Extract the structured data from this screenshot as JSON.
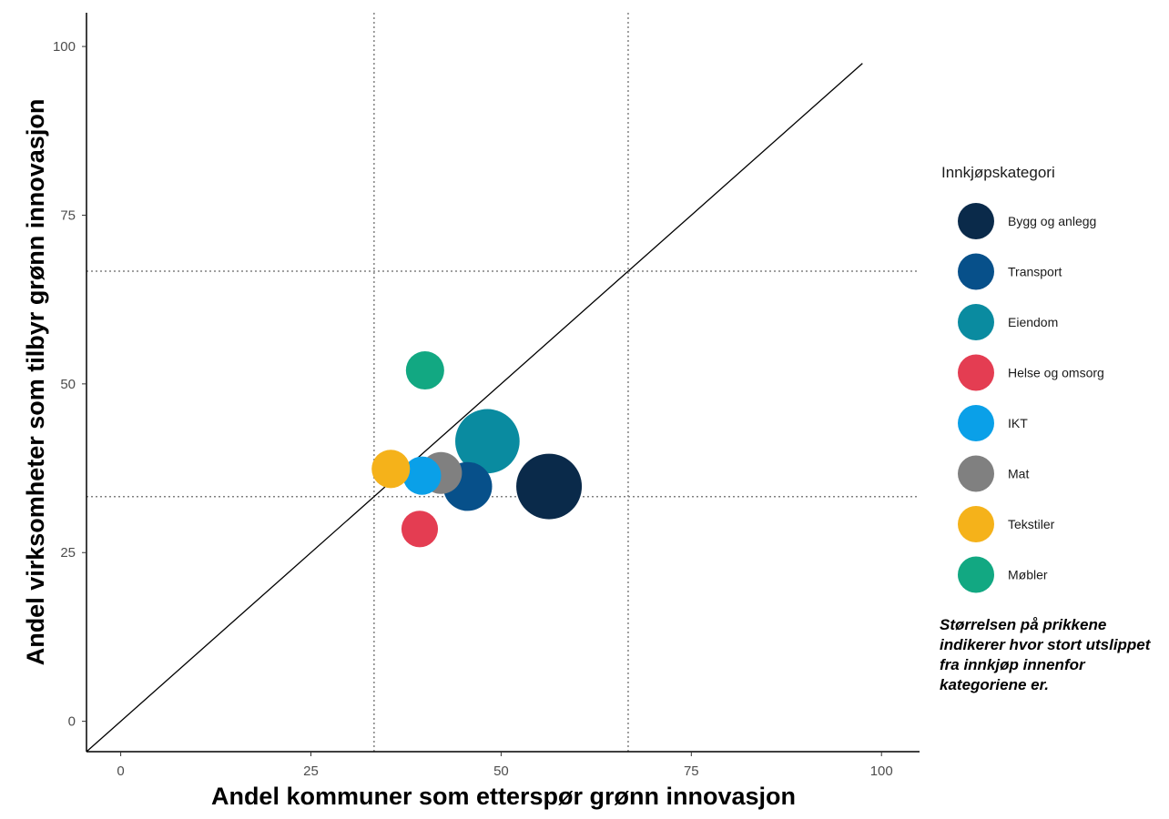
{
  "chart_data": {
    "type": "scatter",
    "xlabel": "Andel kommuner som etterspør grønn innovasjon",
    "ylabel": "Andel virksomheter som tilbyr grønn innovasjon",
    "xlim": [
      -4.5,
      105
    ],
    "ylim": [
      -4.5,
      105
    ],
    "x_ticks": [
      0,
      25,
      50,
      75,
      100
    ],
    "y_ticks": [
      0,
      25,
      50,
      75,
      100
    ],
    "grid": false,
    "reference_lines": {
      "diagonal": "y = x",
      "vertical_dotted_x": [
        33.3,
        66.7
      ],
      "horizontal_dotted_y": [
        33.3,
        66.7
      ]
    },
    "legend": {
      "title": "Innkjøpskategori",
      "position": "right",
      "note": "Størrelsen på prikkene indikerer hvor stort utslippet fra innkjøp innenfor kategoriene er."
    },
    "size_meaning": "Størrelsen på prikkene indikerer hvor stort utslippet fra innkjøp innenfor kategoriene er.",
    "series": [
      {
        "name": "Bygg og anlegg",
        "x": 56.3,
        "y": 34.8,
        "size": 1.0,
        "color": "#0a2a4a"
      },
      {
        "name": "Transport",
        "x": 45.6,
        "y": 34.8,
        "size": 0.42,
        "color": "#07508a"
      },
      {
        "name": "Eiendom",
        "x": 48.2,
        "y": 41.5,
        "size": 0.95,
        "color": "#0a8ba0"
      },
      {
        "name": "Helse og omsorg",
        "x": 39.3,
        "y": 28.5,
        "size": 0.15,
        "color": "#e43d52"
      },
      {
        "name": "IKT",
        "x": 39.6,
        "y": 36.4,
        "size": 0.18,
        "color": "#0aa0e8"
      },
      {
        "name": "Mat",
        "x": 42.1,
        "y": 36.8,
        "size": 0.25,
        "color": "#808080"
      },
      {
        "name": "Tekstiler",
        "x": 35.5,
        "y": 37.4,
        "size": 0.18,
        "color": "#f5b21a"
      },
      {
        "name": "Møbler",
        "x": 40.0,
        "y": 52.0,
        "size": 0.18,
        "color": "#12a882"
      }
    ]
  }
}
